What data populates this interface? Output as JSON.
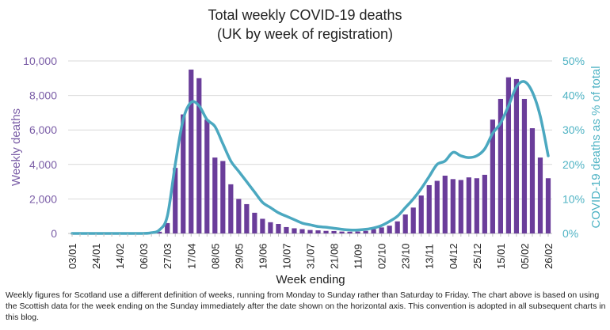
{
  "chart_data": {
    "type": "bar",
    "title": "Total weekly COVID-19 deaths",
    "subtitle": "(UK by week of registration)",
    "xlabel": "Week ending",
    "ylabel": "Weekly deaths",
    "y2label": "COVID-19 deaths as % of total",
    "ylim": [
      0,
      10000
    ],
    "y2lim": [
      0,
      50
    ],
    "yticks": [
      "0",
      "2,000",
      "4,000",
      "6,000",
      "8,000",
      "10,000"
    ],
    "y2ticks": [
      "0%",
      "10%",
      "20%",
      "30%",
      "40%",
      "50%"
    ],
    "grid": true,
    "xtick_labels": [
      "03/01",
      "24/01",
      "14/02",
      "06/03",
      "27/03",
      "17/04",
      "08/05",
      "29/05",
      "19/06",
      "10/07",
      "31/07",
      "21/08",
      "11/09",
      "02/10",
      "23/10",
      "13/11",
      "04/12",
      "25/12",
      "15/01",
      "05/02",
      "26/02"
    ],
    "xtick_every": 3,
    "bar_color": "#6a3d9a",
    "line_color": "#4ba8c0",
    "series": [
      {
        "name": "Weekly deaths",
        "type": "bar",
        "axis": "left",
        "values": [
          0,
          0,
          0,
          0,
          0,
          0,
          0,
          0,
          0,
          0,
          10,
          100,
          600,
          3800,
          6900,
          9500,
          9000,
          6600,
          4400,
          4200,
          2850,
          2000,
          1700,
          1200,
          850,
          650,
          550,
          370,
          300,
          250,
          200,
          180,
          150,
          140,
          110,
          100,
          110,
          150,
          250,
          350,
          450,
          700,
          1100,
          1500,
          2200,
          2800,
          3050,
          3350,
          3150,
          3100,
          3250,
          3200,
          3400,
          6600,
          7800,
          9050,
          8950,
          7800,
          6100,
          4400,
          3200
        ]
      },
      {
        "name": "COVID-19 deaths as % of total",
        "type": "line",
        "axis": "right",
        "values": [
          0,
          0,
          0,
          0,
          0,
          0,
          0,
          0,
          0,
          0,
          0.2,
          1,
          5,
          20,
          33,
          38,
          37,
          33,
          31,
          26,
          21,
          18,
          15,
          12,
          9,
          7.5,
          6,
          5,
          4,
          3,
          2.5,
          2,
          1.8,
          1.5,
          1.2,
          1,
          1,
          1.2,
          1.6,
          2.3,
          3.5,
          5,
          7.5,
          10,
          13,
          16.5,
          20,
          21,
          23.5,
          22.5,
          22,
          22.5,
          24.5,
          29,
          32,
          37,
          42.5,
          44,
          41,
          34,
          22.5
        ]
      }
    ]
  },
  "footnote": "Weekly figures for Scotland use a different definition of weeks, running from Monday to Sunday rather than Saturday to Friday. The chart above is based on using the Scottish data for the week ending on the Sunday immediately after the date shown on the horizontal axis. This convention is adopted in all subsequent charts in this blog."
}
